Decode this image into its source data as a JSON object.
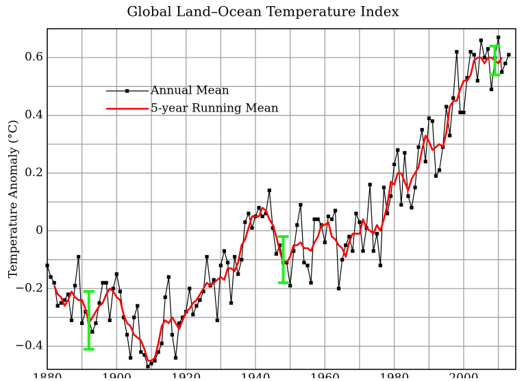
{
  "chart_data": {
    "type": "line",
    "title": "Global Land–Ocean Temperature Index",
    "y_label": "Temperature Anomaly (°C)",
    "x": [
      1880,
      1881,
      1882,
      1883,
      1884,
      1885,
      1886,
      1887,
      1888,
      1889,
      1890,
      1891,
      1892,
      1893,
      1894,
      1895,
      1896,
      1897,
      1898,
      1899,
      1900,
      1901,
      1902,
      1903,
      1904,
      1905,
      1906,
      1907,
      1908,
      1909,
      1910,
      1911,
      1912,
      1913,
      1914,
      1915,
      1916,
      1917,
      1918,
      1919,
      1920,
      1921,
      1922,
      1923,
      1924,
      1925,
      1926,
      1927,
      1928,
      1929,
      1930,
      1931,
      1932,
      1933,
      1934,
      1935,
      1936,
      1937,
      1938,
      1939,
      1940,
      1941,
      1942,
      1943,
      1944,
      1945,
      1946,
      1947,
      1948,
      1949,
      1950,
      1951,
      1952,
      1953,
      1954,
      1955,
      1956,
      1957,
      1958,
      1959,
      1960,
      1961,
      1962,
      1963,
      1964,
      1965,
      1966,
      1967,
      1968,
      1969,
      1970,
      1971,
      1972,
      1973,
      1974,
      1975,
      1976,
      1977,
      1978,
      1979,
      1980,
      1981,
      1982,
      1983,
      1984,
      1985,
      1986,
      1987,
      1988,
      1989,
      1990,
      1991,
      1992,
      1993,
      1994,
      1995,
      1996,
      1997,
      1998,
      1999,
      2000,
      2001,
      2002,
      2003,
      2004,
      2005,
      2006,
      2007,
      2008,
      2009,
      2010,
      2011,
      2012,
      2013
    ],
    "series": [
      {
        "name": "Annual Mean",
        "color": "#000000",
        "marker": "square",
        "values": [
          -0.12,
          -0.16,
          -0.18,
          -0.26,
          -0.25,
          -0.24,
          -0.22,
          -0.31,
          -0.19,
          -0.09,
          -0.32,
          -0.28,
          -0.31,
          -0.35,
          -0.32,
          -0.25,
          -0.18,
          -0.18,
          -0.31,
          -0.2,
          -0.15,
          -0.21,
          -0.3,
          -0.36,
          -0.44,
          -0.3,
          -0.26,
          -0.42,
          -0.43,
          -0.47,
          -0.46,
          -0.45,
          -0.42,
          -0.39,
          -0.23,
          -0.16,
          -0.36,
          -0.44,
          -0.32,
          -0.3,
          -0.28,
          -0.2,
          -0.29,
          -0.26,
          -0.24,
          -0.21,
          -0.09,
          -0.19,
          -0.17,
          -0.31,
          -0.12,
          -0.07,
          -0.11,
          -0.25,
          -0.09,
          -0.15,
          -0.1,
          0.03,
          0.06,
          0.01,
          0.05,
          0.08,
          0.05,
          0.06,
          0.14,
          0.01,
          -0.08,
          -0.05,
          -0.11,
          -0.11,
          -0.19,
          -0.07,
          0.02,
          0.09,
          -0.11,
          -0.12,
          -0.18,
          0.04,
          0.04,
          0.02,
          -0.04,
          0.05,
          0.04,
          0.07,
          -0.2,
          -0.1,
          -0.05,
          -0.02,
          -0.07,
          0.06,
          0.03,
          -0.07,
          0.01,
          0.16,
          -0.07,
          -0.01,
          -0.12,
          0.15,
          0.06,
          0.12,
          0.23,
          0.28,
          0.09,
          0.27,
          0.12,
          0.08,
          0.15,
          0.29,
          0.35,
          0.24,
          0.39,
          0.38,
          0.19,
          0.21,
          0.29,
          0.43,
          0.33,
          0.46,
          0.62,
          0.41,
          0.41,
          0.53,
          0.62,
          0.61,
          0.52,
          0.66,
          0.6,
          0.63,
          0.49,
          0.6,
          0.67,
          0.55,
          0.58,
          0.61
        ]
      },
      {
        "name": "5-year Running Mean",
        "color": "#ff0000",
        "values": [
          null,
          null,
          -0.19,
          -0.22,
          -0.23,
          -0.26,
          -0.24,
          -0.21,
          -0.23,
          -0.24,
          -0.24,
          -0.27,
          -0.32,
          -0.3,
          -0.28,
          -0.26,
          -0.25,
          -0.22,
          -0.2,
          -0.21,
          -0.23,
          -0.24,
          -0.29,
          -0.32,
          -0.33,
          -0.36,
          -0.37,
          -0.38,
          -0.41,
          -0.45,
          -0.45,
          -0.44,
          -0.39,
          -0.33,
          -0.31,
          -0.32,
          -0.3,
          -0.32,
          -0.34,
          -0.31,
          -0.28,
          -0.27,
          -0.25,
          -0.24,
          -0.22,
          -0.2,
          -0.18,
          -0.19,
          -0.18,
          -0.17,
          -0.16,
          -0.17,
          -0.13,
          -0.13,
          -0.14,
          -0.11,
          -0.05,
          -0.03,
          0.01,
          0.05,
          0.05,
          0.05,
          0.08,
          0.07,
          0.04,
          0.02,
          -0.02,
          -0.07,
          -0.11,
          -0.11,
          -0.09,
          -0.05,
          -0.05,
          -0.04,
          -0.06,
          -0.06,
          -0.07,
          -0.04,
          -0.02,
          0.02,
          0.02,
          0.03,
          -0.02,
          -0.03,
          -0.05,
          -0.06,
          -0.09,
          -0.04,
          -0.01,
          -0.01,
          -0.01,
          0.04,
          0.01,
          0.0,
          -0.01,
          0.02,
          0.0,
          0.04,
          0.09,
          0.17,
          0.16,
          0.2,
          0.2,
          0.17,
          0.14,
          0.18,
          0.2,
          0.22,
          0.28,
          0.33,
          0.31,
          0.28,
          0.29,
          0.3,
          0.29,
          0.34,
          0.43,
          0.45,
          0.45,
          0.49,
          0.52,
          0.52,
          0.54,
          0.59,
          0.6,
          0.6,
          0.58,
          0.6,
          0.6,
          0.59,
          0.58,
          0.6,
          null,
          null
        ]
      }
    ],
    "error_bars": [
      {
        "x": 1892,
        "low": -0.41,
        "high": -0.21
      },
      {
        "x": 1948,
        "low": -0.18,
        "high": -0.02
      },
      {
        "x": 2009,
        "low": 0.54,
        "high": 0.64
      }
    ],
    "error_bar_color": "#22ee22",
    "xlim": [
      1880,
      2015
    ],
    "ylim": [
      -0.48,
      0.7
    ],
    "xticks": [
      1880,
      1900,
      1920,
      1940,
      1960,
      1980,
      2000
    ],
    "x_minor_ticks": [
      1890,
      1910,
      1930,
      1950,
      1970,
      1990,
      2010
    ],
    "yticks": [
      {
        "value": -0.4,
        "label": "−0.4"
      },
      {
        "value": -0.2,
        "label": "−0.2"
      },
      0,
      0.2,
      0.4,
      0.6
    ],
    "y_minor_ticks": [
      -0.3,
      -0.1,
      0.1,
      0.3,
      0.5
    ],
    "grid": true,
    "legend": "upper left"
  }
}
